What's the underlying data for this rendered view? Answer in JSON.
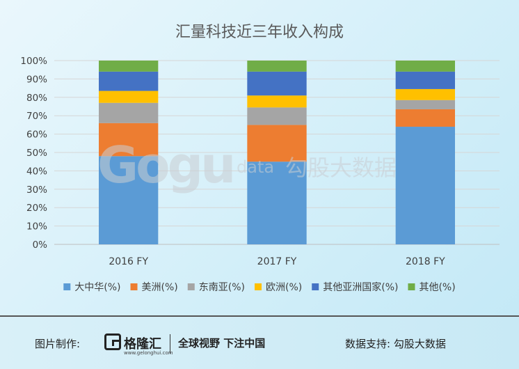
{
  "chart_data": {
    "type": "bar",
    "stacked": true,
    "title": "汇量科技近三年收入构成",
    "categories": [
      "2016 FY",
      "2017 FY",
      "2018 FY"
    ],
    "series": [
      {
        "name": "大中华(%)",
        "color": "#5b9bd5",
        "values": [
          48,
          45,
          64
        ]
      },
      {
        "name": "美洲(%)",
        "color": "#ed7d31",
        "values": [
          18,
          20,
          9.5
        ]
      },
      {
        "name": "东南亚(%)",
        "color": "#a5a5a5",
        "values": [
          11,
          9.5,
          5
        ]
      },
      {
        "name": "欧洲(%)",
        "color": "#ffc000",
        "values": [
          6.5,
          6.5,
          6
        ]
      },
      {
        "name": "其他亚洲国家(%)",
        "color": "#4472c4",
        "values": [
          10.5,
          13,
          9.5
        ]
      },
      {
        "name": "其他(%)",
        "color": "#70ad47",
        "values": [
          6,
          6,
          6
        ]
      }
    ],
    "yticks": [
      "0%",
      "10%",
      "20%",
      "30%",
      "40%",
      "50%",
      "60%",
      "70%",
      "80%",
      "90%",
      "100%"
    ],
    "ylim": [
      0,
      100
    ],
    "grid": true,
    "legend_position": "bottom"
  },
  "watermark": {
    "text": "Gogu data 勾股大数据"
  },
  "footer": {
    "credit_label": "图片制作:",
    "brand_name": "格隆汇",
    "brand_domain": "www.gelonghui.com",
    "slogan": "全球视野 下注中国",
    "support_label": "数据支持: 勾股大数据"
  }
}
